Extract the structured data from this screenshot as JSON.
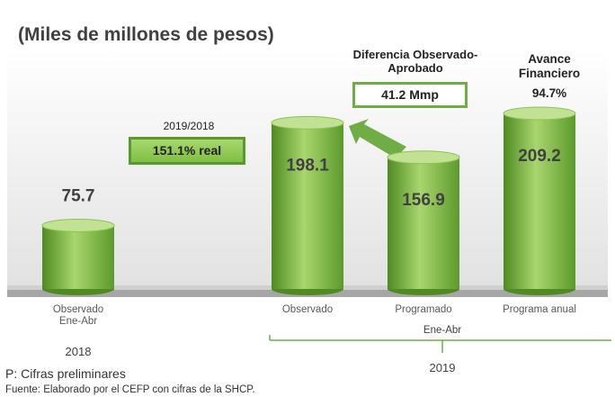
{
  "chart_data": {
    "type": "bar",
    "title": "(Miles de millones de pesos)",
    "categories": [
      "Observado Ene-Abr",
      "Observado",
      "Programado",
      "Programa anual"
    ],
    "values": [
      75.7,
      198.1,
      156.9,
      209.2
    ],
    "color": "#70ad47",
    "groups": [
      {
        "label": "2018"
      },
      {
        "period": "Ene-Abr",
        "label": "2019"
      }
    ],
    "comparison": {
      "label": "2019/2018",
      "value": "151.1% real"
    },
    "difference": {
      "title": "Diferencia Observado-Aprobado",
      "value": "41.2 Mmp"
    },
    "progress": {
      "title": "Avance Financiero",
      "value": "94.7%"
    },
    "notes": [
      "P: Cifras preliminares",
      "Fuente: Elaborado por el CEFP con cifras de la SHCP."
    ]
  }
}
